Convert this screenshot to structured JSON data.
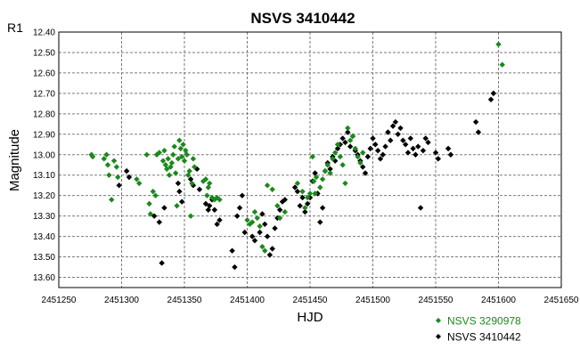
{
  "chart_data": {
    "type": "scatter",
    "title": "NSVS 3410442",
    "corner_label": "R1",
    "xlabel": "HJD",
    "ylabel": "Magnitude",
    "xlim": [
      2451250,
      2451650
    ],
    "ylim": [
      13.65,
      12.4
    ],
    "y_inverted": true,
    "grid": true,
    "legend_position": "bottom-right",
    "x_ticks": [
      "2451250",
      "2451300",
      "2451350",
      "2451400",
      "2451450",
      "2451500",
      "2451550",
      "2451600",
      "2451650"
    ],
    "y_ticks": [
      "12.40",
      "12.50",
      "12.60",
      "12.70",
      "12.80",
      "12.90",
      "13.00",
      "13.10",
      "13.20",
      "13.30",
      "13.40",
      "13.50",
      "13.60"
    ],
    "series": [
      {
        "name": "NSVS 3290978",
        "color": "#1a8a1a",
        "points": [
          [
            2451276,
            13.0
          ],
          [
            2451277,
            13.01
          ],
          [
            2451286,
            13.02
          ],
          [
            2451288,
            13.0
          ],
          [
            2451289,
            13.05
          ],
          [
            2451290,
            13.1
          ],
          [
            2451292,
            13.22
          ],
          [
            2451294,
            13.03
          ],
          [
            2451296,
            13.06
          ],
          [
            2451297,
            13.11
          ],
          [
            2451312,
            13.12
          ],
          [
            2451314,
            13.14
          ],
          [
            2451320,
            13.0
          ],
          [
            2451322,
            13.24
          ],
          [
            2451323,
            13.29
          ],
          [
            2451325,
            13.18
          ],
          [
            2451327,
            13.2
          ],
          [
            2451328,
            13.0
          ],
          [
            2451330,
            12.99
          ],
          [
            2451333,
            13.03
          ],
          [
            2451334,
            12.98
          ],
          [
            2451335,
            13.05
          ],
          [
            2451336,
            13.07
          ],
          [
            2451337,
            13.02
          ],
          [
            2451338,
            13.1
          ],
          [
            2451339,
            13.06
          ],
          [
            2451340,
            13.04
          ],
          [
            2451341,
            13.0
          ],
          [
            2451342,
            12.96
          ],
          [
            2451343,
            13.09
          ],
          [
            2451344,
            13.25
          ],
          [
            2451345,
            13.02
          ],
          [
            2451346,
            12.93
          ],
          [
            2451347,
            12.97
          ],
          [
            2451348,
            13.01
          ],
          [
            2451349,
            12.95
          ],
          [
            2451350,
            13.03
          ],
          [
            2451351,
            12.98
          ],
          [
            2451352,
            13.0
          ],
          [
            2451353,
            13.1
          ],
          [
            2451354,
            13.08
          ],
          [
            2451355,
            13.3
          ],
          [
            2451356,
            13.14
          ],
          [
            2451357,
            13.02
          ],
          [
            2451358,
            13.06
          ],
          [
            2451365,
            13.13
          ],
          [
            2451367,
            13.12
          ],
          [
            2451368,
            13.2
          ],
          [
            2451369,
            13.16
          ],
          [
            2451370,
            13.14
          ],
          [
            2451372,
            13.21
          ],
          [
            2451374,
            13.22
          ],
          [
            2451376,
            13.21
          ],
          [
            2451378,
            13.22
          ],
          [
            2451400,
            13.32
          ],
          [
            2451402,
            13.34
          ],
          [
            2451404,
            13.33
          ],
          [
            2451406,
            13.28
          ],
          [
            2451408,
            13.31
          ],
          [
            2451410,
            13.35
          ],
          [
            2451412,
            13.45
          ],
          [
            2451414,
            13.47
          ],
          [
            2451416,
            13.15
          ],
          [
            2451420,
            13.17
          ],
          [
            2451424,
            13.25
          ],
          [
            2451426,
            13.31
          ],
          [
            2451430,
            13.28
          ],
          [
            2451440,
            13.14
          ],
          [
            2451444,
            13.18
          ],
          [
            2451446,
            13.26
          ],
          [
            2451448,
            13.21
          ],
          [
            2451450,
            13.19
          ],
          [
            2451452,
            13.01
          ],
          [
            2451453,
            13.13
          ],
          [
            2451454,
            13.19
          ],
          [
            2451455,
            13.11
          ],
          [
            2451458,
            13.16
          ],
          [
            2451460,
            13.12
          ],
          [
            2451462,
            13.08
          ],
          [
            2451464,
            13.05
          ],
          [
            2451466,
            13.09
          ],
          [
            2451468,
            13.02
          ],
          [
            2451470,
            12.99
          ],
          [
            2451472,
            12.95
          ],
          [
            2451474,
            13.01
          ],
          [
            2451476,
            13.05
          ],
          [
            2451478,
            13.14
          ],
          [
            2451480,
            12.87
          ],
          [
            2451482,
            12.93
          ],
          [
            2451484,
            12.91
          ],
          [
            2451486,
            12.97
          ],
          [
            2451488,
            13.01
          ],
          [
            2451490,
            13.04
          ],
          [
            2451492,
            12.99
          ],
          [
            2451600,
            12.46
          ],
          [
            2451603,
            12.56
          ]
        ]
      },
      {
        "name": "NSVS 3410442",
        "color": "#000000",
        "points": [
          [
            2451298,
            13.15
          ],
          [
            2451304,
            13.08
          ],
          [
            2451306,
            13.11
          ],
          [
            2451326,
            13.3
          ],
          [
            2451330,
            13.33
          ],
          [
            2451332,
            13.53
          ],
          [
            2451334,
            13.26
          ],
          [
            2451345,
            13.14
          ],
          [
            2451346,
            13.18
          ],
          [
            2451348,
            13.23
          ],
          [
            2451355,
            13.12
          ],
          [
            2451357,
            13.15
          ],
          [
            2451360,
            13.07
          ],
          [
            2451362,
            13.17
          ],
          [
            2451367,
            13.24
          ],
          [
            2451369,
            13.27
          ],
          [
            2451370,
            13.25
          ],
          [
            2451372,
            13.22
          ],
          [
            2451374,
            13.27
          ],
          [
            2451376,
            13.34
          ],
          [
            2451378,
            13.32
          ],
          [
            2451388,
            13.47
          ],
          [
            2451390,
            13.55
          ],
          [
            2451392,
            13.3
          ],
          [
            2451394,
            13.26
          ],
          [
            2451396,
            13.2
          ],
          [
            2451398,
            13.38
          ],
          [
            2451404,
            13.4
          ],
          [
            2451406,
            13.42
          ],
          [
            2451410,
            13.38
          ],
          [
            2451412,
            13.29
          ],
          [
            2451414,
            13.34
          ],
          [
            2451416,
            13.4
          ],
          [
            2451418,
            13.49
          ],
          [
            2451420,
            13.46
          ],
          [
            2451422,
            13.36
          ],
          [
            2451424,
            13.31
          ],
          [
            2451426,
            13.27
          ],
          [
            2451428,
            13.23
          ],
          [
            2451430,
            13.22
          ],
          [
            2451438,
            13.16
          ],
          [
            2451440,
            13.18
          ],
          [
            2451442,
            13.25
          ],
          [
            2451444,
            13.21
          ],
          [
            2451446,
            13.28
          ],
          [
            2451448,
            13.24
          ],
          [
            2451450,
            13.21
          ],
          [
            2451452,
            13.13
          ],
          [
            2451454,
            13.09
          ],
          [
            2451456,
            13.19
          ],
          [
            2451458,
            13.33
          ],
          [
            2451460,
            13.26
          ],
          [
            2451462,
            13.08
          ],
          [
            2451464,
            13.04
          ],
          [
            2451466,
            13.07
          ],
          [
            2451468,
            13.01
          ],
          [
            2451470,
            13.03
          ],
          [
            2451472,
            12.97
          ],
          [
            2451474,
            12.95
          ],
          [
            2451476,
            12.92
          ],
          [
            2451478,
            12.94
          ],
          [
            2451480,
            12.89
          ],
          [
            2451482,
            12.96
          ],
          [
            2451484,
            12.91
          ],
          [
            2451486,
            12.98
          ],
          [
            2451488,
            13.0
          ],
          [
            2451490,
            13.03
          ],
          [
            2451492,
            13.06
          ],
          [
            2451494,
            13.09
          ],
          [
            2451496,
            13.01
          ],
          [
            2451498,
            12.97
          ],
          [
            2451500,
            12.92
          ],
          [
            2451502,
            12.95
          ],
          [
            2451504,
            12.98
          ],
          [
            2451506,
            13.02
          ],
          [
            2451508,
            13.0
          ],
          [
            2451510,
            12.96
          ],
          [
            2451512,
            12.89
          ],
          [
            2451514,
            12.93
          ],
          [
            2451516,
            12.86
          ],
          [
            2451518,
            12.84
          ],
          [
            2451520,
            12.9
          ],
          [
            2451522,
            12.87
          ],
          [
            2451524,
            12.93
          ],
          [
            2451526,
            12.95
          ],
          [
            2451528,
            12.99
          ],
          [
            2451530,
            12.92
          ],
          [
            2451532,
            12.97
          ],
          [
            2451534,
            13.0
          ],
          [
            2451536,
            12.96
          ],
          [
            2451538,
            13.26
          ],
          [
            2451540,
            12.98
          ],
          [
            2451542,
            12.92
          ],
          [
            2451544,
            12.94
          ],
          [
            2451550,
            12.99
          ],
          [
            2451552,
            13.02
          ],
          [
            2451560,
            12.97
          ],
          [
            2451562,
            13.0
          ],
          [
            2451582,
            12.84
          ],
          [
            2451584,
            12.89
          ],
          [
            2451594,
            12.73
          ],
          [
            2451596,
            12.7
          ]
        ]
      }
    ]
  }
}
